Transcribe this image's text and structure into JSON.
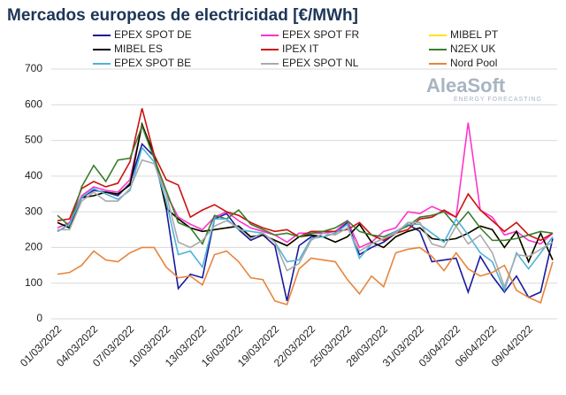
{
  "chart_data": {
    "type": "line",
    "title": "Mercados europeos de electricidad [€/MWh]",
    "logo": "AleaSoft",
    "logo_subtitle": "ENERGY FORECASTING",
    "categories": [
      "01/03/2022",
      null,
      null,
      "04/03/2022",
      null,
      null,
      "07/03/2022",
      null,
      null,
      "10/03/2022",
      null,
      null,
      "13/03/2022",
      null,
      null,
      "16/03/2022",
      null,
      null,
      "19/03/2022",
      null,
      null,
      "22/03/2022",
      null,
      null,
      "25/03/2022",
      null,
      null,
      "28/03/2022",
      null,
      null,
      "31/03/2022",
      null,
      null,
      "03/04/2022",
      null,
      null,
      "06/04/2022",
      null,
      null,
      "09/04/2022",
      null,
      null
    ],
    "ylim": [
      0,
      700
    ],
    "yticks": [
      0,
      100,
      200,
      300,
      400,
      500,
      600,
      700
    ],
    "grid": true,
    "series": [
      {
        "name": "EPEX SPOT DE",
        "color": "#1a1a9c",
        "values": [
          245,
          265,
          340,
          360,
          355,
          345,
          380,
          490,
          455,
          310,
          85,
          125,
          115,
          280,
          295,
          250,
          220,
          235,
          205,
          50,
          205,
          230,
          230,
          240,
          270,
          180,
          200,
          215,
          240,
          265,
          245,
          160,
          165,
          170,
          75,
          175,
          120,
          75,
          120,
          60,
          75,
          225
        ]
      },
      {
        "name": "EPEX SPOT FR",
        "color": "#ff33cc",
        "values": [
          255,
          270,
          345,
          370,
          360,
          355,
          390,
          545,
          450,
          350,
          285,
          265,
          250,
          285,
          300,
          275,
          255,
          245,
          235,
          215,
          240,
          240,
          240,
          245,
          275,
          200,
          215,
          245,
          255,
          300,
          295,
          315,
          300,
          285,
          550,
          305,
          285,
          235,
          245,
          220,
          210,
          240
        ]
      },
      {
        "name": "MIBEL PT",
        "color": "#ffe600",
        "values": [
          270,
          255,
          340,
          345,
          355,
          350,
          375,
          545,
          460,
          310,
          280,
          255,
          245,
          250,
          255,
          260,
          230,
          235,
          220,
          205,
          230,
          235,
          230,
          215,
          230,
          265,
          215,
          200,
          230,
          245,
          255,
          225,
          220,
          225,
          240,
          260,
          250,
          200,
          245,
          160,
          240,
          165
        ]
      },
      {
        "name": "MIBEL ES",
        "color": "#000000",
        "values": [
          270,
          255,
          340,
          345,
          355,
          350,
          375,
          545,
          460,
          310,
          280,
          255,
          245,
          250,
          255,
          260,
          230,
          235,
          220,
          205,
          230,
          235,
          230,
          215,
          230,
          265,
          215,
          200,
          230,
          245,
          255,
          225,
          220,
          225,
          240,
          260,
          250,
          200,
          245,
          160,
          240,
          165
        ]
      },
      {
        "name": "IPEX IT",
        "color": "#cc1111",
        "values": [
          275,
          280,
          365,
          385,
          370,
          380,
          440,
          590,
          460,
          390,
          375,
          285,
          305,
          320,
          300,
          290,
          270,
          255,
          245,
          250,
          230,
          245,
          245,
          245,
          250,
          270,
          235,
          220,
          240,
          250,
          280,
          285,
          305,
          285,
          350,
          305,
          275,
          245,
          270,
          235,
          220,
          240
        ]
      },
      {
        "name": "N2EX UK",
        "color": "#3a7d2c",
        "values": [
          290,
          260,
          370,
          430,
          385,
          445,
          450,
          540,
          450,
          360,
          270,
          255,
          210,
          290,
          280,
          305,
          265,
          250,
          235,
          240,
          230,
          240,
          245,
          255,
          275,
          245,
          235,
          230,
          245,
          260,
          285,
          290,
          300,
          260,
          300,
          255,
          220,
          220,
          225,
          235,
          245,
          240
        ]
      },
      {
        "name": "EPEX SPOT BE",
        "color": "#4fb3d9",
        "values": [
          245,
          265,
          340,
          365,
          350,
          335,
          360,
          480,
          440,
          330,
          180,
          190,
          145,
          280,
          280,
          250,
          245,
          240,
          215,
          160,
          165,
          225,
          230,
          240,
          265,
          170,
          210,
          225,
          245,
          265,
          265,
          240,
          215,
          280,
          235,
          185,
          160,
          80,
          185,
          140,
          185,
          230
        ]
      },
      {
        "name": "EPEX SPOT NL",
        "color": "#aaaaaa",
        "values": [
          250,
          250,
          330,
          355,
          330,
          330,
          365,
          445,
          435,
          350,
          215,
          200,
          220,
          260,
          275,
          255,
          225,
          240,
          215,
          135,
          155,
          220,
          240,
          235,
          255,
          190,
          210,
          225,
          240,
          270,
          270,
          210,
          200,
          260,
          210,
          235,
          185,
          90,
          180,
          175,
          195,
          215
        ]
      },
      {
        "name": "Nord Pool",
        "color": "#e8843c",
        "values": [
          125,
          130,
          150,
          190,
          165,
          160,
          185,
          200,
          200,
          145,
          115,
          120,
          95,
          180,
          190,
          160,
          115,
          110,
          50,
          40,
          140,
          170,
          165,
          160,
          110,
          70,
          120,
          90,
          185,
          195,
          200,
          175,
          135,
          185,
          140,
          120,
          130,
          150,
          80,
          60,
          45,
          160
        ]
      }
    ]
  }
}
